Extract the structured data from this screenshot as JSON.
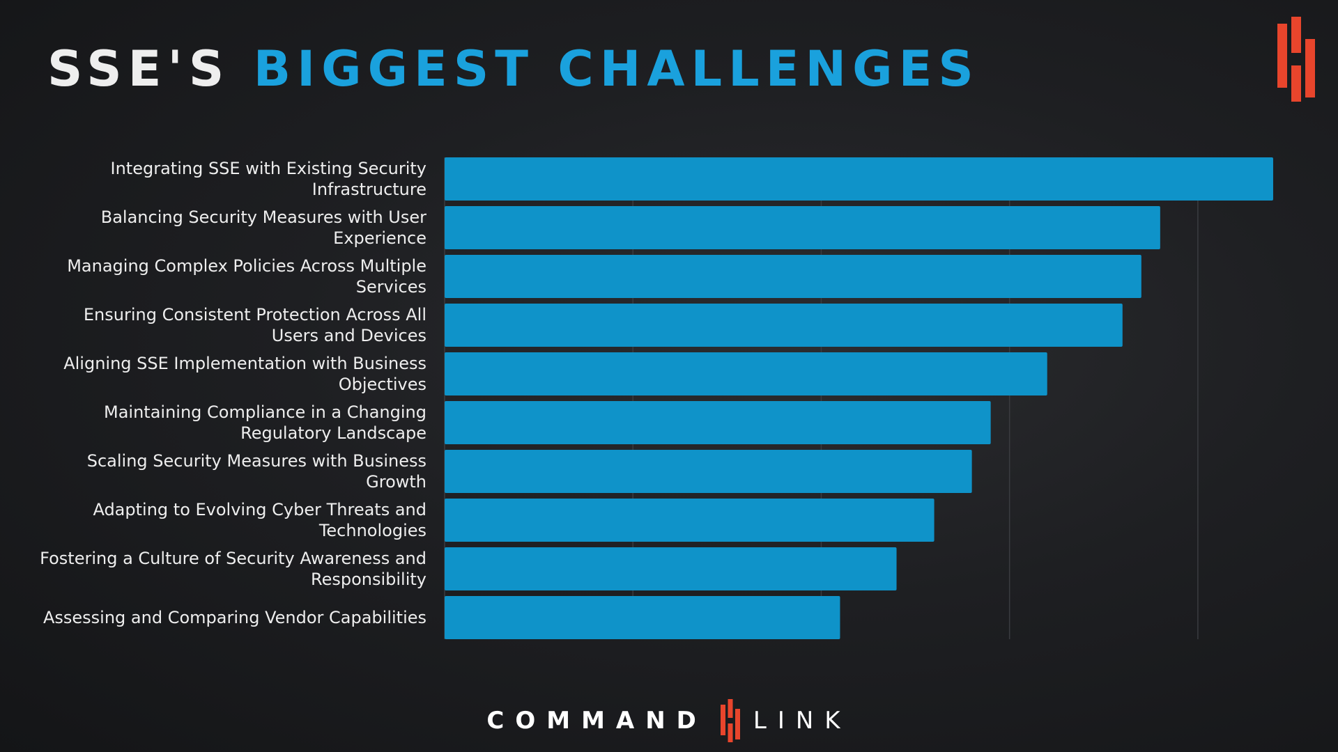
{
  "title": {
    "part1": "SSE'S",
    "part2": "BIGGEST CHALLENGES"
  },
  "colors": {
    "title_text": "#eeeeee",
    "title_accent": "#1aa1dd",
    "bar": "#0f93c9",
    "logo": "#e8452c",
    "background": "#1e1f22"
  },
  "brand": {
    "left": "COMMAND",
    "right": "LINK"
  },
  "chart_data": {
    "type": "bar",
    "orientation": "horizontal",
    "categories": [
      "Integrating SSE with Existing Security Infrastructure",
      "Balancing Security Measures with User Experience",
      "Managing Complex Policies Across Multiple Services",
      "Ensuring Consistent Protection Across All Users and Devices",
      "Aligning SSE Implementation with Business Objectives",
      "Maintaining Compliance in a Changing Regulatory Landscape",
      "Scaling Security Measures with Business Growth",
      "Adapting to Evolving Cyber Threats and Technologies",
      "Fostering a Culture of Security Awareness and Responsibility",
      "Assessing and Comparing Vendor Capabilities"
    ],
    "values": [
      4.4,
      3.8,
      3.7,
      3.6,
      3.2,
      2.9,
      2.8,
      2.6,
      2.4,
      2.1
    ],
    "xlim": [
      0,
      4.5
    ],
    "grid": true,
    "legend": "none",
    "xlabel": "",
    "ylabel": ""
  }
}
